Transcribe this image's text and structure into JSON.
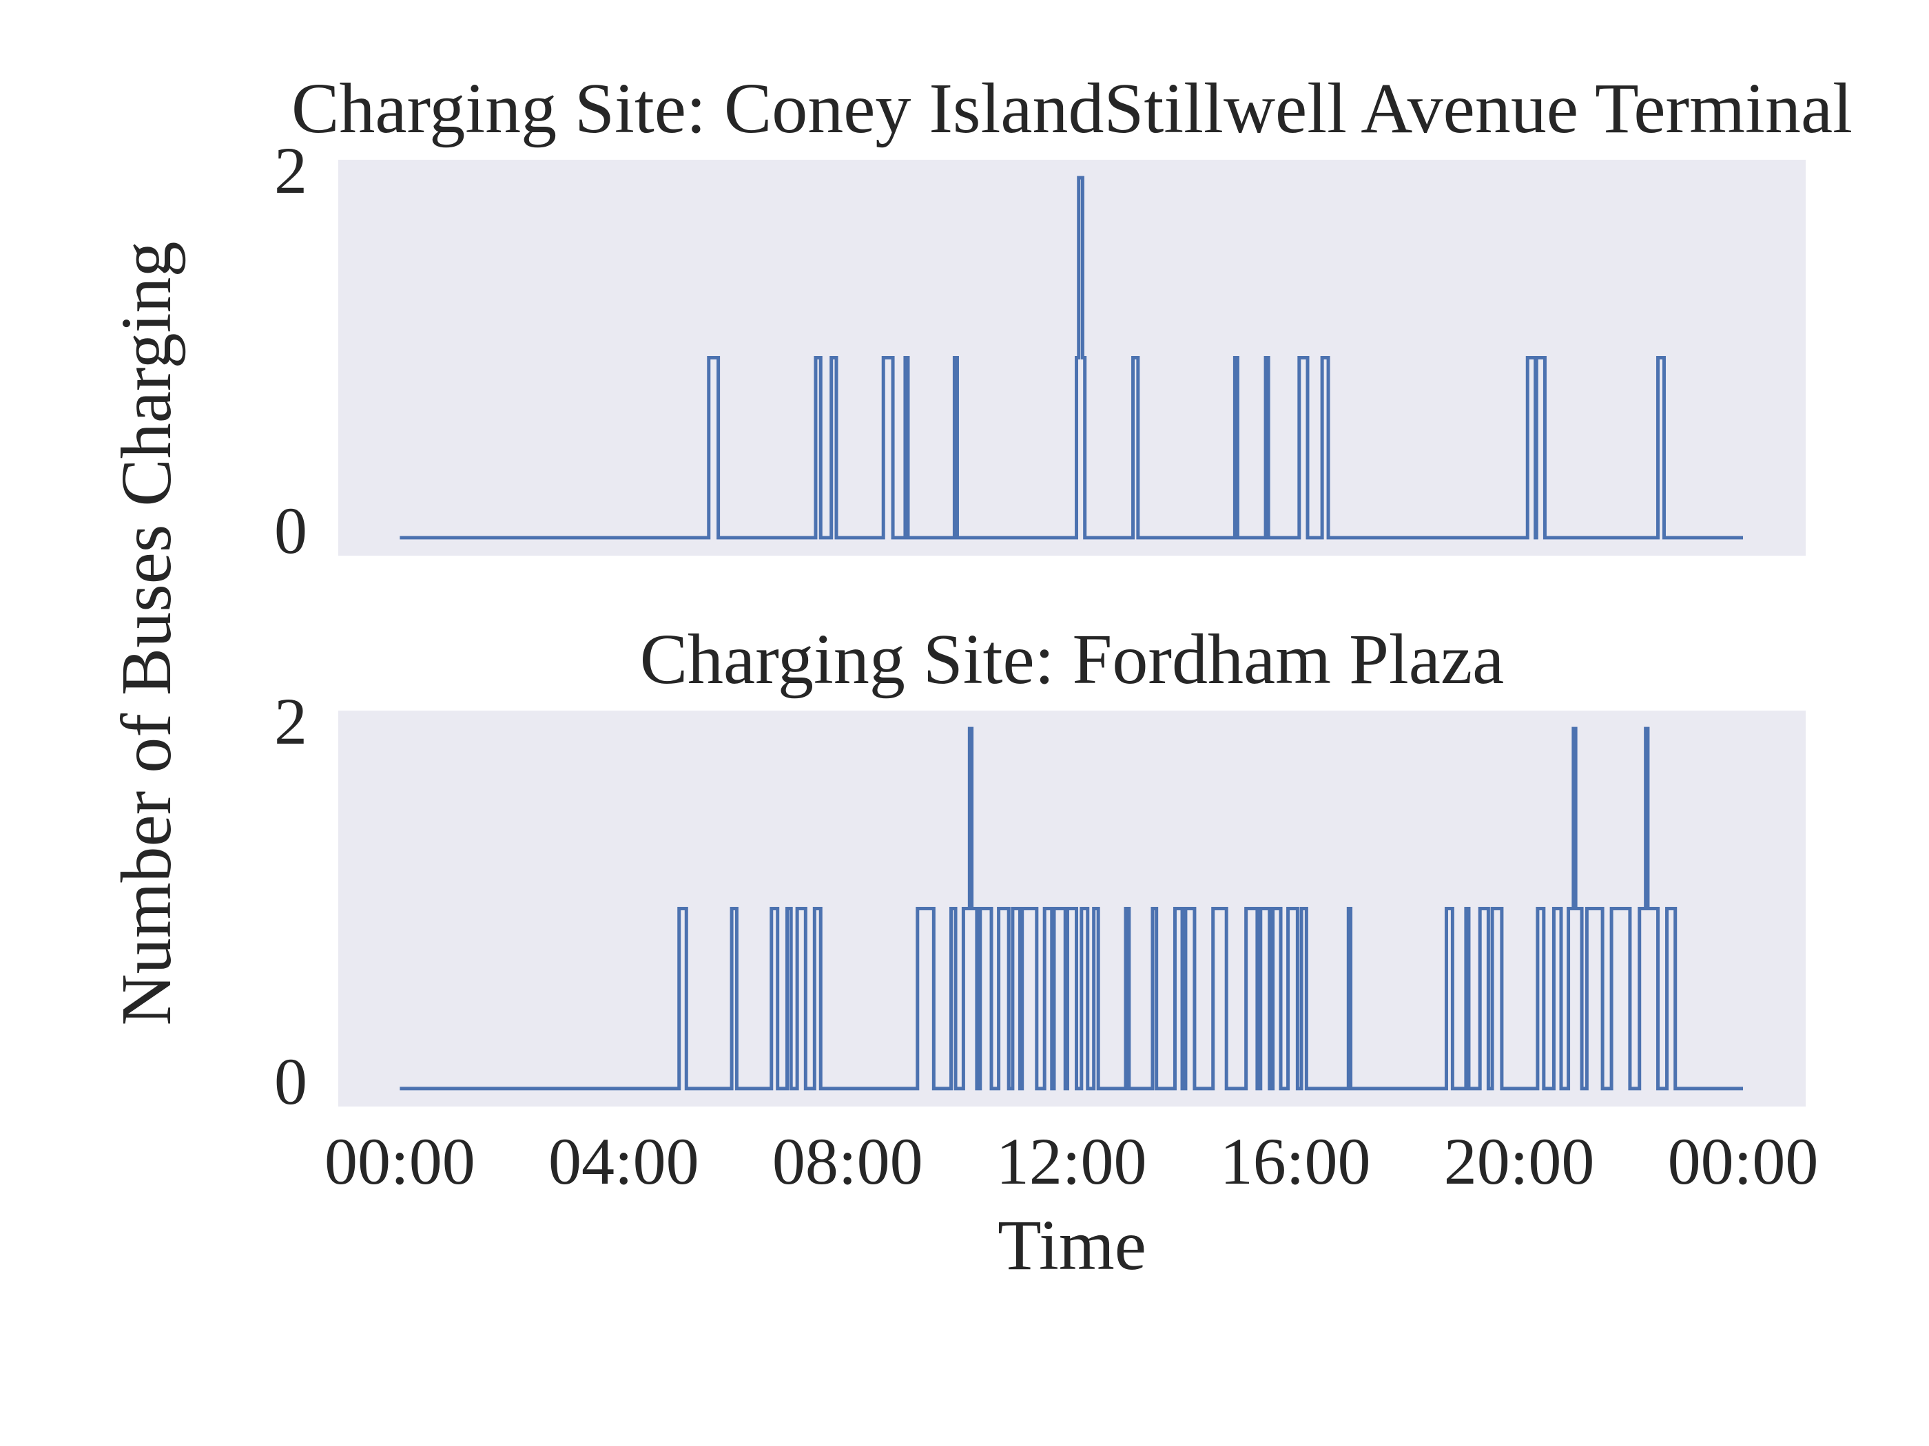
{
  "chart_data": [
    {
      "type": "line",
      "title": "Charging Site: Coney IslandStillwell Avenue Terminal",
      "ylabel": "Number of Buses Charging",
      "xlim": [
        -1.1,
        25.12
      ],
      "ylim": [
        -0.1,
        2.1
      ],
      "yticks": [
        0,
        2
      ],
      "grid": false,
      "series": [
        {
          "color": "#4c72b0",
          "x": [
            0,
            5.52,
            5.52,
            5.69,
            5.69,
            7.43,
            7.43,
            7.52,
            7.52,
            7.71,
            7.71,
            7.8,
            7.8,
            8.64,
            8.64,
            8.81,
            8.81,
            9.03,
            9.03,
            9.08,
            9.08,
            9.91,
            9.91,
            9.96,
            9.96,
            12.09,
            12.09,
            12.13,
            12.13,
            12.2,
            12.2,
            12.24,
            12.24,
            13.1,
            13.1,
            13.19,
            13.19,
            14.92,
            14.92,
            14.97,
            14.97,
            15.47,
            15.47,
            15.52,
            15.52,
            16.07,
            16.07,
            16.22,
            16.22,
            16.48,
            16.48,
            16.59,
            16.59,
            20.15,
            20.15,
            20.29,
            20.29,
            20.31,
            20.31,
            20.46,
            20.46,
            22.48,
            22.48,
            22.59,
            22.59,
            24
          ],
          "values": [
            0,
            0,
            1,
            1,
            0,
            0,
            1,
            1,
            0,
            0,
            1,
            1,
            0,
            0,
            1,
            1,
            0,
            0,
            1,
            1,
            0,
            0,
            1,
            1,
            0,
            0,
            1,
            1,
            2,
            2,
            1,
            1,
            0,
            0,
            1,
            1,
            0,
            0,
            1,
            1,
            0,
            0,
            1,
            1,
            0,
            0,
            1,
            1,
            0,
            0,
            1,
            1,
            0,
            0,
            1,
            1,
            0,
            0,
            1,
            1,
            0,
            0,
            1,
            1,
            0,
            0
          ]
        }
      ]
    },
    {
      "type": "line",
      "title": "Charging Site: Fordham Plaza",
      "xlabel": "Time",
      "xlim": [
        -1.1,
        25.12
      ],
      "ylim": [
        -0.1,
        2.1
      ],
      "yticks": [
        0,
        2
      ],
      "grid": false,
      "xticks": [
        {
          "value": 0,
          "label": "00:00"
        },
        {
          "value": 4,
          "label": "04:00"
        },
        {
          "value": 8,
          "label": "08:00"
        },
        {
          "value": 12,
          "label": "12:00"
        },
        {
          "value": 16,
          "label": "16:00"
        },
        {
          "value": 20,
          "label": "20:00"
        },
        {
          "value": 24,
          "label": "00:00"
        }
      ],
      "series": [
        {
          "color": "#4c72b0",
          "x": [
            0,
            4.99,
            4.99,
            5.12,
            5.12,
            5.93,
            5.93,
            6.02,
            6.02,
            6.64,
            6.64,
            6.75,
            6.75,
            6.92,
            6.92,
            6.99,
            6.99,
            7.1,
            7.1,
            7.25,
            7.25,
            7.41,
            7.41,
            7.52,
            7.52,
            9.25,
            9.25,
            9.54,
            9.54,
            9.85,
            9.85,
            9.93,
            9.93,
            10.07,
            10.07,
            10.18,
            10.18,
            10.22,
            10.22,
            10.31,
            10.31,
            10.37,
            10.37,
            10.57,
            10.57,
            10.7,
            10.7,
            10.88,
            10.88,
            10.95,
            10.95,
            11.08,
            11.08,
            11.12,
            11.12,
            11.38,
            11.38,
            11.52,
            11.52,
            11.65,
            11.65,
            11.69,
            11.69,
            11.89,
            11.89,
            11.93,
            11.93,
            12.09,
            12.09,
            12.18,
            12.18,
            12.29,
            12.29,
            12.4,
            12.4,
            12.48,
            12.48,
            12.97,
            12.97,
            13.03,
            13.03,
            13.45,
            13.45,
            13.52,
            13.52,
            13.85,
            13.85,
            13.98,
            13.98,
            14.04,
            14.04,
            14.2,
            14.2,
            14.53,
            14.53,
            14.77,
            14.77,
            15.12,
            15.12,
            15.32,
            15.32,
            15.38,
            15.38,
            15.54,
            15.54,
            15.6,
            15.6,
            15.74,
            15.74,
            15.87,
            15.87,
            16.04,
            16.04,
            16.11,
            16.11,
            16.2,
            16.2,
            16.95,
            16.95,
            16.99,
            16.99,
            18.7,
            18.7,
            18.81,
            18.81,
            19.05,
            19.05,
            19.1,
            19.1,
            19.3,
            19.3,
            19.45,
            19.45,
            19.52,
            19.52,
            19.69,
            19.69,
            20.33,
            20.33,
            20.44,
            20.44,
            20.62,
            20.62,
            20.75,
            20.75,
            20.88,
            20.88,
            20.97,
            20.97,
            21.01,
            21.01,
            21.12,
            21.12,
            21.21,
            21.21,
            21.49,
            21.49,
            21.65,
            21.65,
            21.98,
            21.98,
            22.15,
            22.15,
            22.26,
            22.26,
            22.3,
            22.3,
            22.48,
            22.48,
            22.64,
            22.64,
            22.79,
            22.79,
            24
          ],
          "values": [
            0,
            0,
            1,
            1,
            0,
            0,
            1,
            1,
            0,
            0,
            1,
            1,
            0,
            0,
            1,
            1,
            0,
            0,
            1,
            1,
            0,
            0,
            1,
            1,
            0,
            0,
            1,
            1,
            0,
            0,
            1,
            1,
            0,
            0,
            1,
            1,
            2,
            2,
            1,
            1,
            0,
            0,
            1,
            1,
            0,
            0,
            1,
            1,
            0,
            0,
            1,
            1,
            0,
            0,
            1,
            1,
            0,
            0,
            1,
            1,
            0,
            0,
            1,
            1,
            0,
            0,
            1,
            1,
            0,
            0,
            1,
            1,
            0,
            0,
            1,
            1,
            0,
            0,
            1,
            1,
            0,
            0,
            1,
            1,
            0,
            0,
            1,
            1,
            0,
            0,
            1,
            1,
            0,
            0,
            1,
            1,
            0,
            0,
            1,
            1,
            0,
            0,
            1,
            1,
            0,
            0,
            1,
            1,
            0,
            0,
            1,
            1,
            0,
            0,
            1,
            1,
            0,
            0,
            1,
            1,
            0,
            0,
            1,
            1,
            0,
            0,
            1,
            1,
            0,
            0,
            1,
            1,
            0,
            0,
            1,
            1,
            0,
            0,
            1,
            1,
            0,
            0,
            1,
            1,
            0,
            0,
            1,
            1,
            2,
            2,
            1,
            1,
            0,
            0,
            1,
            1,
            0,
            0,
            1,
            1,
            0,
            0,
            1,
            1,
            2,
            2,
            1,
            1,
            0,
            0,
            1,
            1,
            0,
            0
          ]
        }
      ]
    }
  ]
}
